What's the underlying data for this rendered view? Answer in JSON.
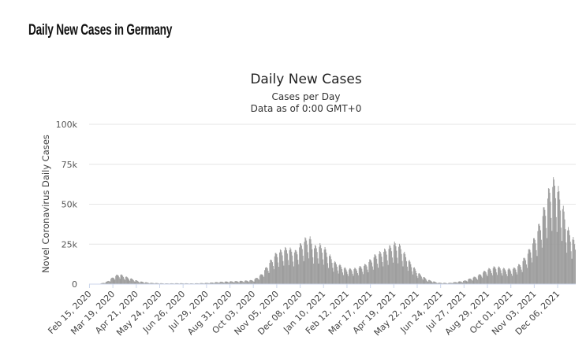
{
  "page": {
    "heading": "Daily New Cases in Germany"
  },
  "chart_data": {
    "type": "bar",
    "title": "Daily New Cases",
    "subtitle": "Cases per Day",
    "subtitle2": "Data as of 0:00 GMT+0",
    "ylabel": "Novel Coronavirus Daily Cases",
    "xlabel": "",
    "ylim": [
      0,
      100000
    ],
    "yticks": [
      {
        "value": 0,
        "label": "0"
      },
      {
        "value": 25000,
        "label": "25k"
      },
      {
        "value": 50000,
        "label": "50k"
      },
      {
        "value": 75000,
        "label": "75k"
      },
      {
        "value": 100000,
        "label": "100k"
      }
    ],
    "x_start": "2020-02-15",
    "x_end": "2021-12-31",
    "xtick_labels": [
      {
        "date": "2020-02-15",
        "label": "Feb 15, 2020"
      },
      {
        "date": "2020-03-19",
        "label": "Mar 19, 2020"
      },
      {
        "date": "2020-04-21",
        "label": "Apr 21, 2020"
      },
      {
        "date": "2020-05-24",
        "label": "May 24, 2020"
      },
      {
        "date": "2020-06-26",
        "label": "Jun 26, 2020"
      },
      {
        "date": "2020-07-29",
        "label": "Jul 29, 2020"
      },
      {
        "date": "2020-08-31",
        "label": "Aug 31, 2020"
      },
      {
        "date": "2020-10-03",
        "label": "Oct 03, 2020"
      },
      {
        "date": "2020-11-05",
        "label": "Nov 05, 2020"
      },
      {
        "date": "2020-12-08",
        "label": "Dec 08, 2020"
      },
      {
        "date": "2021-01-10",
        "label": "Jan 10, 2021"
      },
      {
        "date": "2021-02-12",
        "label": "Feb 12, 2021"
      },
      {
        "date": "2021-03-17",
        "label": "Mar 17, 2021"
      },
      {
        "date": "2021-04-19",
        "label": "Apr 19, 2021"
      },
      {
        "date": "2021-05-22",
        "label": "May 22, 2021"
      },
      {
        "date": "2021-06-24",
        "label": "Jun 24, 2021"
      },
      {
        "date": "2021-07-27",
        "label": "Jul 27, 2021"
      },
      {
        "date": "2021-08-29",
        "label": "Aug 29, 2021"
      },
      {
        "date": "2021-10-01",
        "label": "Oct 01, 2021"
      },
      {
        "date": "2021-11-03",
        "label": "Nov 03, 2021"
      },
      {
        "date": "2021-12-06",
        "label": "Dec 06, 2021"
      }
    ],
    "bar_color": "#999999",
    "weekly_profile": [
      0.62,
      1.12,
      1.22,
      1.18,
      1.1,
      0.98,
      0.78
    ],
    "trend": [
      [
        "2020-02-15",
        0
      ],
      [
        "2020-02-28",
        50
      ],
      [
        "2020-03-10",
        1200
      ],
      [
        "2020-03-20",
        4000
      ],
      [
        "2020-03-28",
        5500
      ],
      [
        "2020-04-05",
        4200
      ],
      [
        "2020-04-15",
        2800
      ],
      [
        "2020-04-25",
        1500
      ],
      [
        "2020-05-10",
        700
      ],
      [
        "2020-06-01",
        400
      ],
      [
        "2020-06-20",
        500
      ],
      [
        "2020-07-10",
        400
      ],
      [
        "2020-07-29",
        650
      ],
      [
        "2020-08-20",
        1300
      ],
      [
        "2020-09-15",
        1700
      ],
      [
        "2020-10-03",
        2200
      ],
      [
        "2020-10-15",
        5500
      ],
      [
        "2020-10-28",
        13000
      ],
      [
        "2020-11-05",
        17000
      ],
      [
        "2020-11-20",
        19500
      ],
      [
        "2020-12-01",
        17500
      ],
      [
        "2020-12-10",
        22000
      ],
      [
        "2020-12-20",
        26000
      ],
      [
        "2020-12-28",
        20000
      ],
      [
        "2021-01-05",
        21000
      ],
      [
        "2021-01-12",
        19000
      ],
      [
        "2021-01-25",
        12000
      ],
      [
        "2021-02-12",
        8000
      ],
      [
        "2021-02-25",
        8500
      ],
      [
        "2021-03-10",
        10500
      ],
      [
        "2021-03-25",
        16000
      ],
      [
        "2021-04-10",
        19000
      ],
      [
        "2021-04-19",
        22000
      ],
      [
        "2021-04-28",
        20500
      ],
      [
        "2021-05-08",
        14000
      ],
      [
        "2021-05-22",
        6500
      ],
      [
        "2021-06-05",
        2500
      ],
      [
        "2021-06-20",
        800
      ],
      [
        "2021-07-05",
        600
      ],
      [
        "2021-07-27",
        1800
      ],
      [
        "2021-08-15",
        4500
      ],
      [
        "2021-08-29",
        8000
      ],
      [
        "2021-09-10",
        9500
      ],
      [
        "2021-09-25",
        8000
      ],
      [
        "2021-10-05",
        8500
      ],
      [
        "2021-10-15",
        11000
      ],
      [
        "2021-10-25",
        17000
      ],
      [
        "2021-11-05",
        26000
      ],
      [
        "2021-11-15",
        38000
      ],
      [
        "2021-11-25",
        52000
      ],
      [
        "2021-12-02",
        56000
      ],
      [
        "2021-12-10",
        47000
      ],
      [
        "2021-12-20",
        30000
      ],
      [
        "2021-12-31",
        22000
      ]
    ]
  }
}
